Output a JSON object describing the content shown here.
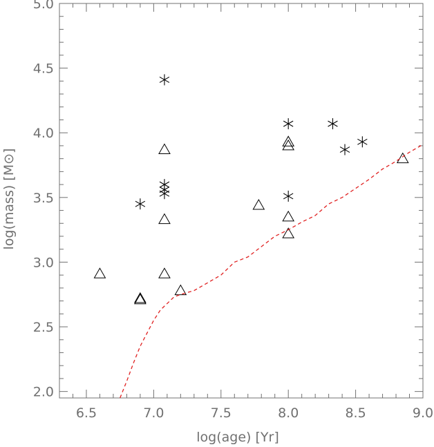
{
  "chart_data": {
    "type": "scatter",
    "xlabel": "log(age) [Yr]",
    "ylabel_main": "log(mass) [M",
    "ylabel_symbol": "⊙",
    "ylabel_close": "]",
    "xlim": [
      6.3,
      9.0
    ],
    "ylim": [
      1.95,
      5.0
    ],
    "x_ticks": [
      6.5,
      7.0,
      7.5,
      8.0,
      8.5,
      9.0
    ],
    "x_tick_labels": [
      "6.5",
      "7.0",
      "7.5",
      "8.0",
      "8.5",
      "9.0"
    ],
    "x_minor_step": 0.1,
    "y_ticks": [
      2.0,
      2.5,
      3.0,
      3.5,
      4.0,
      4.5,
      5.0
    ],
    "y_tick_labels": [
      "2.0",
      "2.5",
      "3.0",
      "3.5",
      "4.0",
      "4.5",
      "5.0"
    ],
    "y_minor_step": 0.1,
    "grid": false,
    "series": [
      {
        "marker": "asterisk",
        "color": "#000000",
        "points": [
          [
            6.9,
            3.45
          ],
          [
            7.08,
            4.41
          ],
          [
            7.08,
            3.6
          ],
          [
            7.08,
            3.56
          ],
          [
            7.08,
            3.53
          ],
          [
            8.0,
            4.07
          ],
          [
            8.0,
            3.51
          ],
          [
            8.33,
            4.07
          ],
          [
            8.42,
            3.87
          ],
          [
            8.55,
            3.93
          ]
        ]
      },
      {
        "marker": "triangle",
        "color": "#000000",
        "points": [
          [
            6.6,
            2.91
          ],
          [
            6.9,
            2.72
          ],
          [
            6.9,
            2.71
          ],
          [
            7.08,
            3.87
          ],
          [
            7.08,
            3.33
          ],
          [
            7.08,
            2.91
          ],
          [
            7.2,
            2.78
          ],
          [
            7.78,
            3.44
          ],
          [
            8.0,
            3.93
          ],
          [
            8.0,
            3.9
          ],
          [
            8.0,
            3.35
          ],
          [
            8.0,
            3.22
          ],
          [
            8.85,
            3.8
          ]
        ]
      },
      {
        "marker": "dashed-line",
        "color": "#e02020",
        "points": [
          [
            6.75,
            1.95
          ],
          [
            6.8,
            2.08
          ],
          [
            6.85,
            2.22
          ],
          [
            6.9,
            2.35
          ],
          [
            6.95,
            2.45
          ],
          [
            7.0,
            2.55
          ],
          [
            7.05,
            2.63
          ],
          [
            7.1,
            2.68
          ],
          [
            7.15,
            2.73
          ],
          [
            7.2,
            2.75
          ],
          [
            7.3,
            2.78
          ],
          [
            7.4,
            2.84
          ],
          [
            7.5,
            2.9
          ],
          [
            7.6,
            3.0
          ],
          [
            7.7,
            3.04
          ],
          [
            7.8,
            3.12
          ],
          [
            7.9,
            3.2
          ],
          [
            8.0,
            3.25
          ],
          [
            8.1,
            3.31
          ],
          [
            8.2,
            3.36
          ],
          [
            8.3,
            3.45
          ],
          [
            8.4,
            3.5
          ],
          [
            8.5,
            3.57
          ],
          [
            8.6,
            3.64
          ],
          [
            8.7,
            3.72
          ],
          [
            8.8,
            3.78
          ],
          [
            8.9,
            3.85
          ],
          [
            9.0,
            3.91
          ]
        ]
      }
    ]
  }
}
